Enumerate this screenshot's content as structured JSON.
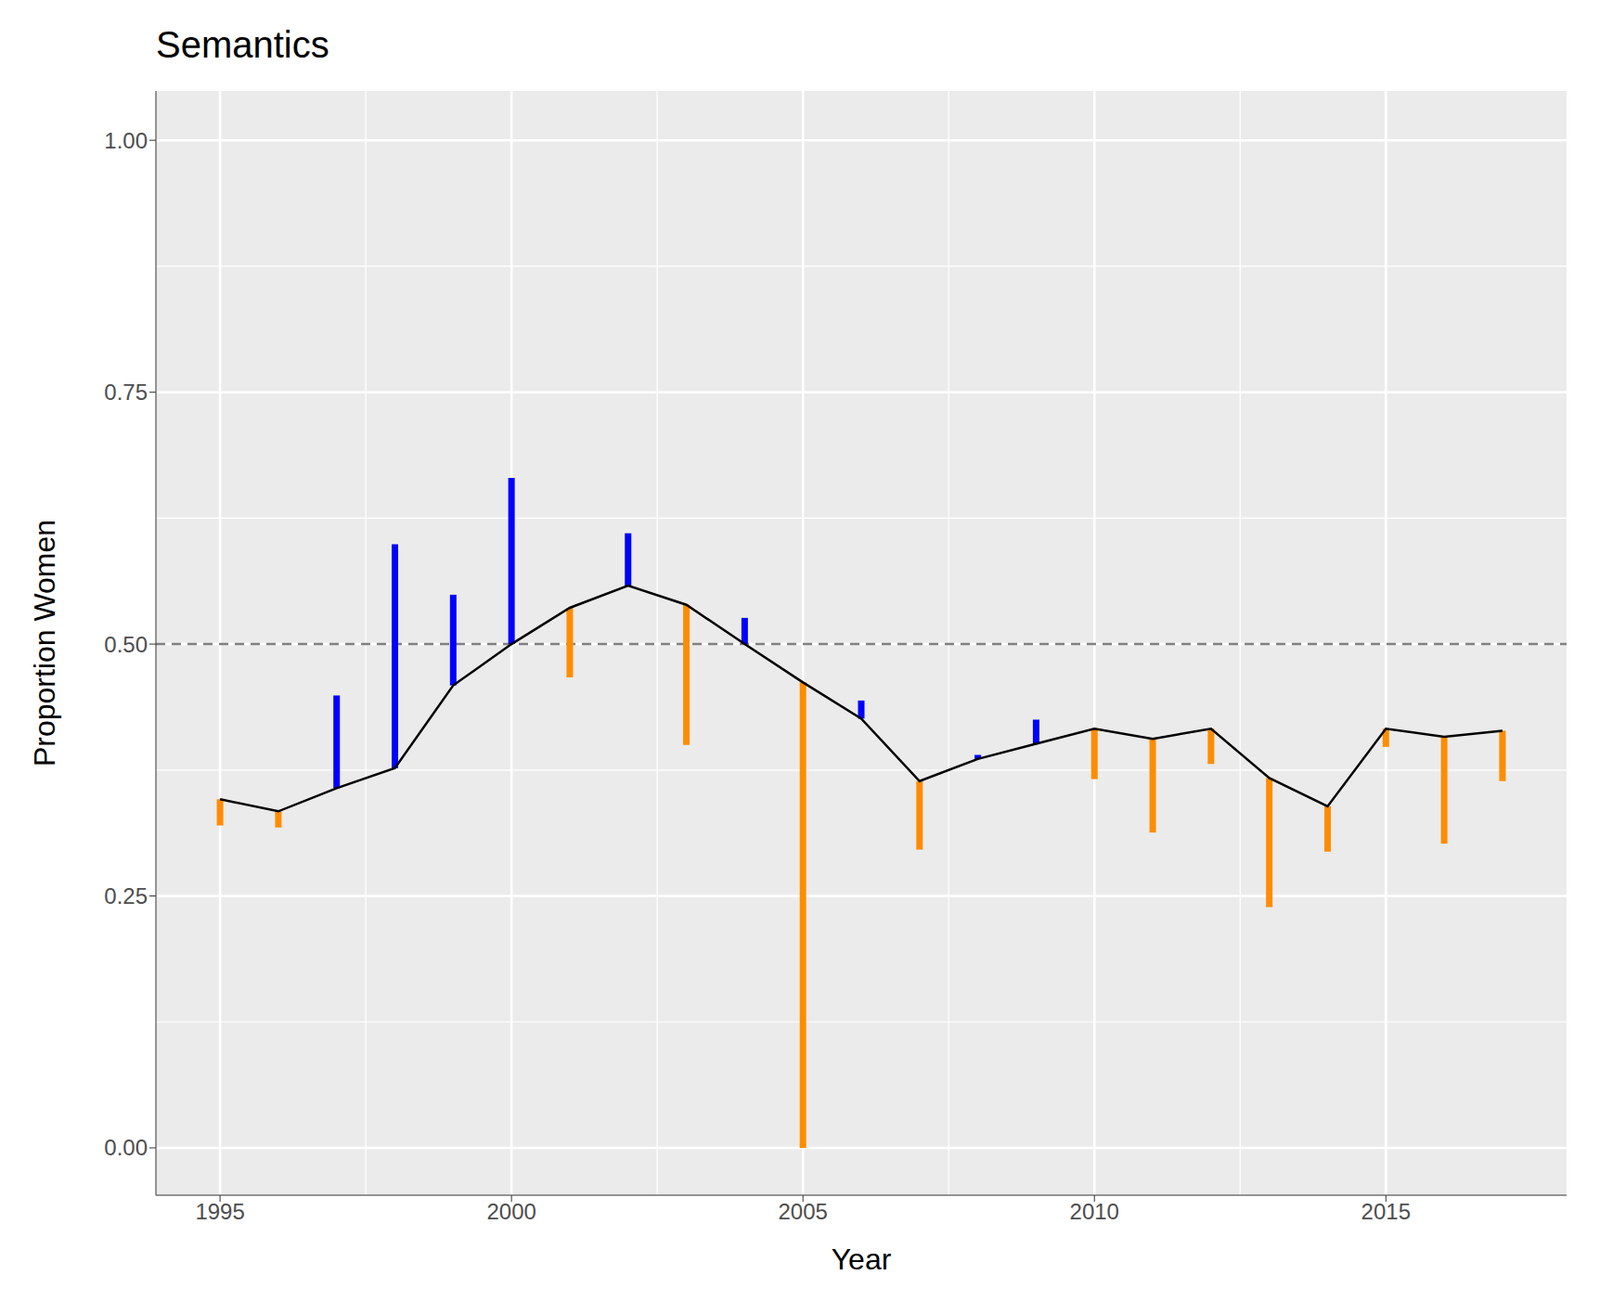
{
  "chart_data": {
    "type": "line",
    "title": "Semantics",
    "x_label": "Year",
    "y_label": "Proportion Women",
    "x": [
      1995,
      1996,
      1997,
      1998,
      1999,
      2000,
      2001,
      2002,
      2003,
      2004,
      2005,
      2006,
      2007,
      2008,
      2009,
      2010,
      2011,
      2012,
      2013,
      2014,
      2015,
      2016,
      2017
    ],
    "values": [
      0.346,
      0.334,
      0.357,
      0.377,
      0.459,
      0.5,
      0.536,
      0.558,
      0.539,
      0.5,
      0.462,
      0.426,
      0.364,
      0.386,
      0.401,
      0.416,
      0.406,
      0.416,
      0.367,
      0.339,
      0.416,
      0.408,
      0.414
    ],
    "color": "#000000",
    "segment_ends": [
      0.32,
      0.318,
      0.449,
      0.599,
      0.549,
      0.665,
      0.467,
      0.61,
      0.4,
      0.526,
      0.0,
      0.444,
      0.296,
      0.39,
      0.425,
      0.366,
      0.313,
      0.381,
      0.239,
      0.294,
      0.398,
      0.302,
      0.364
    ],
    "colors": [
      "#ff8c00",
      "#ff8c00",
      "#0000ff",
      "#0000ff",
      "#0000ff",
      "#0000ff",
      "#ff8c00",
      "#0000ff",
      "#ff8c00",
      "#0000ff",
      "#ff8c00",
      "#0000ff",
      "#ff8c00",
      "#0000ff",
      "#0000ff",
      "#ff8c00",
      "#ff8c00",
      "#ff8c00",
      "#ff8c00",
      "#ff8c00",
      "#ff8c00",
      "#ff8c00",
      "#ff8c00"
    ],
    "reference_line": 0.5,
    "xlim": [
      1993.9,
      2018.1
    ],
    "xticks": [
      1995,
      2000,
      2005,
      2010,
      2015
    ],
    "ylim": [
      -0.047,
      1.049
    ],
    "yticks": [
      {
        "value": 0,
        "label": "0.00"
      },
      {
        "value": 0.25,
        "label": "0.25"
      },
      {
        "value": 0.5,
        "label": "0.50"
      },
      {
        "value": 0.75,
        "label": "0.75"
      },
      {
        "value": 1,
        "label": "1.00"
      }
    ],
    "grid": true
  }
}
